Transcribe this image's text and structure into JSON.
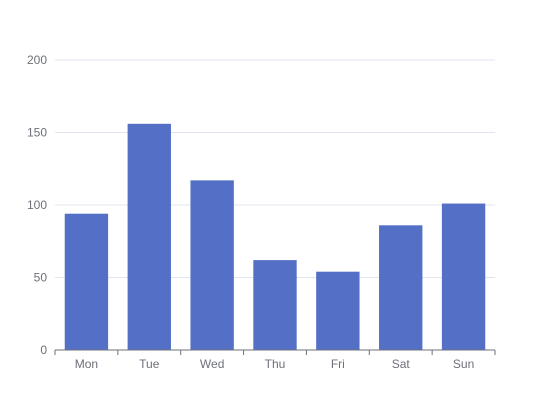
{
  "chart_data": {
    "type": "bar",
    "title": "",
    "xlabel": "",
    "ylabel": "",
    "categories": [
      "Mon",
      "Tue",
      "Wed",
      "Thu",
      "Fri",
      "Sat",
      "Sun"
    ],
    "series": [
      {
        "values": [
          94,
          156,
          117,
          62,
          54,
          86,
          101
        ]
      }
    ],
    "ylim": [
      0,
      200
    ],
    "yticks": [
      0,
      50,
      100,
      150,
      200
    ],
    "grid": true,
    "legend": "none",
    "colors": {
      "bar": "#5470c6",
      "grid": "#e0e6f1",
      "axis": "#6e7079",
      "label": "#6e7079"
    }
  }
}
